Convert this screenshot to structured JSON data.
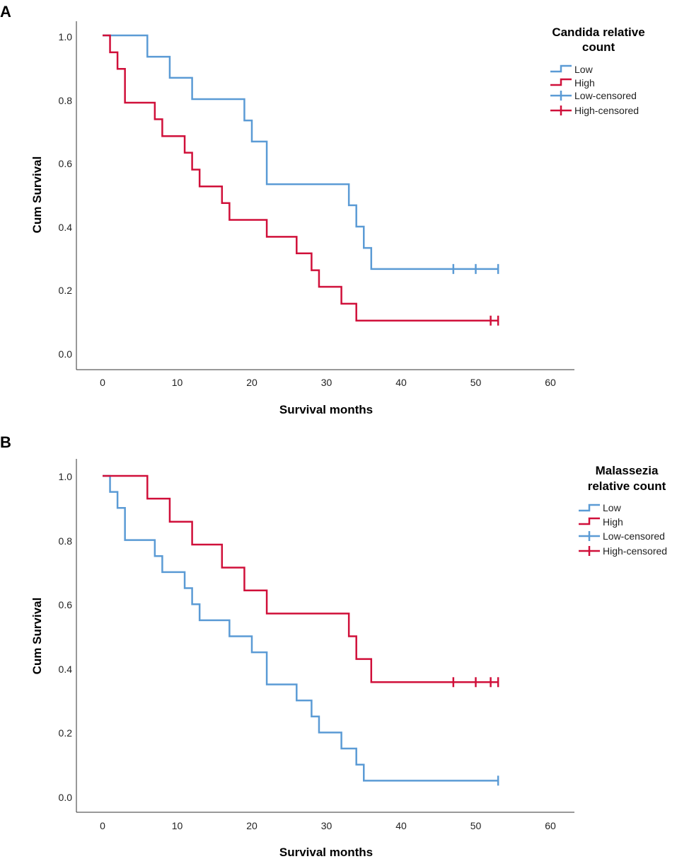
{
  "colors": {
    "low": "#5B9BD5",
    "high": "#D0103A",
    "axis": "#333333"
  },
  "chart_data": [
    {
      "type": "line",
      "panel_label": "A",
      "title": "",
      "xlabel": "Survival months",
      "ylabel": "Cum Survival",
      "xlim": [
        -3,
        63
      ],
      "ylim": [
        -0.05,
        1.05
      ],
      "xticks": [
        "0",
        "10",
        "20",
        "30",
        "40",
        "50",
        "60"
      ],
      "yticks": [
        "0.0",
        "0.2",
        "0.4",
        "0.6",
        "0.8",
        "1.0"
      ],
      "legend": {
        "title_lines": [
          "Candida relative",
          "count"
        ],
        "entries": [
          "Low",
          "High",
          "Low-censored",
          "High-censored"
        ],
        "position": "top-right"
      },
      "series": [
        {
          "name": "Low",
          "color_key": "low",
          "steps": [
            [
              0,
              1.0
            ],
            [
              6,
              0.933
            ],
            [
              9,
              0.867
            ],
            [
              12,
              0.8
            ],
            [
              19,
              0.733
            ],
            [
              20,
              0.667
            ],
            [
              22,
              0.533
            ],
            [
              33,
              0.467
            ],
            [
              34,
              0.4
            ],
            [
              35,
              0.333
            ],
            [
              36,
              0.267
            ]
          ],
          "end": 53,
          "censored": [
            47,
            50,
            53
          ]
        },
        {
          "name": "High",
          "color_key": "high",
          "steps": [
            [
              0,
              1.0
            ],
            [
              1,
              0.947
            ],
            [
              2,
              0.895
            ],
            [
              3,
              0.789
            ],
            [
              7,
              0.737
            ],
            [
              8,
              0.684
            ],
            [
              11,
              0.632
            ],
            [
              12,
              0.579
            ],
            [
              13,
              0.526
            ],
            [
              16,
              0.474
            ],
            [
              17,
              0.421
            ],
            [
              22,
              0.368
            ],
            [
              26,
              0.316
            ],
            [
              28,
              0.263
            ],
            [
              29,
              0.211
            ],
            [
              32,
              0.158
            ],
            [
              34,
              0.105
            ]
          ],
          "end": 53,
          "censored": [
            52,
            53
          ]
        }
      ]
    },
    {
      "type": "line",
      "panel_label": "B",
      "title": "",
      "xlabel": "Survival months",
      "ylabel": "Cum Survival",
      "xlim": [
        -3,
        63
      ],
      "ylim": [
        -0.05,
        1.05
      ],
      "xticks": [
        "0",
        "10",
        "20",
        "30",
        "40",
        "50",
        "60"
      ],
      "yticks": [
        "0.0",
        "0.2",
        "0.4",
        "0.6",
        "0.8",
        "1.0"
      ],
      "legend": {
        "title_lines": [
          "Malassezia",
          "relative count"
        ],
        "entries": [
          "Low",
          "High",
          "Low-censored",
          "High-censored"
        ],
        "position": "top-right"
      },
      "series": [
        {
          "name": "Low",
          "color_key": "low",
          "steps": [
            [
              0,
              1.0
            ],
            [
              1,
              0.95
            ],
            [
              2,
              0.9
            ],
            [
              3,
              0.8
            ],
            [
              7,
              0.75
            ],
            [
              8,
              0.7
            ],
            [
              11,
              0.65
            ],
            [
              12,
              0.6
            ],
            [
              13,
              0.55
            ],
            [
              17,
              0.5
            ],
            [
              20,
              0.45
            ],
            [
              22,
              0.35
            ],
            [
              26,
              0.3
            ],
            [
              28,
              0.25
            ],
            [
              29,
              0.2
            ],
            [
              32,
              0.15
            ],
            [
              34,
              0.1
            ],
            [
              35,
              0.05
            ]
          ],
          "end": 53,
          "censored": [
            53
          ]
        },
        {
          "name": "High",
          "color_key": "high",
          "steps": [
            [
              0,
              1.0
            ],
            [
              6,
              0.929
            ],
            [
              9,
              0.857
            ],
            [
              12,
              0.786
            ],
            [
              16,
              0.714
            ],
            [
              19,
              0.643
            ],
            [
              22,
              0.571
            ],
            [
              33,
              0.5
            ],
            [
              34,
              0.429
            ],
            [
              36,
              0.357
            ]
          ],
          "end": 53,
          "censored": [
            47,
            50,
            52,
            53
          ]
        }
      ]
    }
  ]
}
